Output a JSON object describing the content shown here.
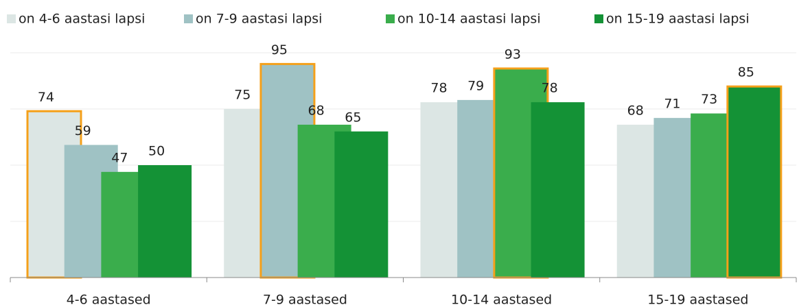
{
  "chart_data": {
    "type": "bar",
    "categories": [
      "4-6 aastased",
      "7-9 aastased",
      "10-14 aastased",
      "15-19 aastased"
    ],
    "series": [
      {
        "name": "on 4-6 aastasi lapsi",
        "color": "#dce6e4",
        "values": [
          74,
          75,
          78,
          68
        ],
        "highlight": 0
      },
      {
        "name": "on 7-9 aastasi lapsi",
        "color": "#9fc2c4",
        "values": [
          59,
          95,
          79,
          71
        ],
        "highlight": 1
      },
      {
        "name": "on 10-14 aastasi lapsi",
        "color": "#3aad4c",
        "values": [
          47,
          68,
          93,
          73
        ],
        "highlight": 2
      },
      {
        "name": "on 15-19 aastasi lapsi",
        "color": "#149236",
        "values": [
          50,
          65,
          78,
          85
        ],
        "highlight": 3
      }
    ],
    "highlight_color": "#f5a01a",
    "ylim": [
      0,
      100
    ],
    "yticks": [
      0,
      25,
      50,
      75,
      100
    ],
    "grid": true,
    "legend": "top"
  }
}
